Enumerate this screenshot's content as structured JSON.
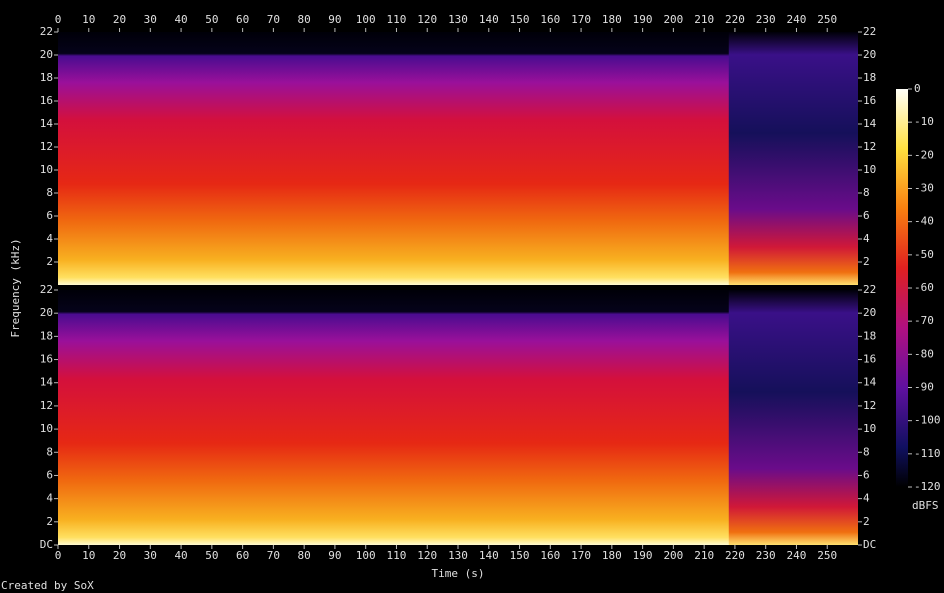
{
  "chart_data": [
    {
      "type": "spectrogram",
      "y_label": "Frequency (kHz)",
      "xlim": [
        0,
        260
      ],
      "xticks": [
        0,
        10,
        20,
        30,
        40,
        50,
        60,
        70,
        80,
        90,
        100,
        110,
        120,
        130,
        140,
        150,
        160,
        170,
        180,
        190,
        200,
        210,
        220,
        230,
        240,
        250
      ],
      "ylim": [
        0,
        22
      ],
      "yticks": [
        2,
        4,
        6,
        8,
        10,
        12,
        14,
        16,
        18,
        20,
        22
      ]
    },
    {
      "type": "spectrogram",
      "x_label": "Time (s)",
      "xlim": [
        0,
        260
      ],
      "xticks": [
        0,
        10,
        20,
        30,
        40,
        50,
        60,
        70,
        80,
        90,
        100,
        110,
        120,
        130,
        140,
        150,
        160,
        170,
        180,
        190,
        200,
        210,
        220,
        230,
        240,
        250
      ],
      "ylim": [
        0,
        22
      ],
      "yticks": [
        {
          "value": 0,
          "label": "DC"
        },
        2,
        4,
        6,
        8,
        10,
        12,
        14,
        16,
        18,
        20,
        22
      ]
    }
  ],
  "colorbar": {
    "label": "dBFS",
    "lim": [
      -120,
      0
    ],
    "ticks": [
      0,
      -10,
      -20,
      -30,
      -40,
      -50,
      -60,
      -70,
      -80,
      -90,
      -100,
      -110,
      -120
    ]
  },
  "footer": "Created by SoX"
}
